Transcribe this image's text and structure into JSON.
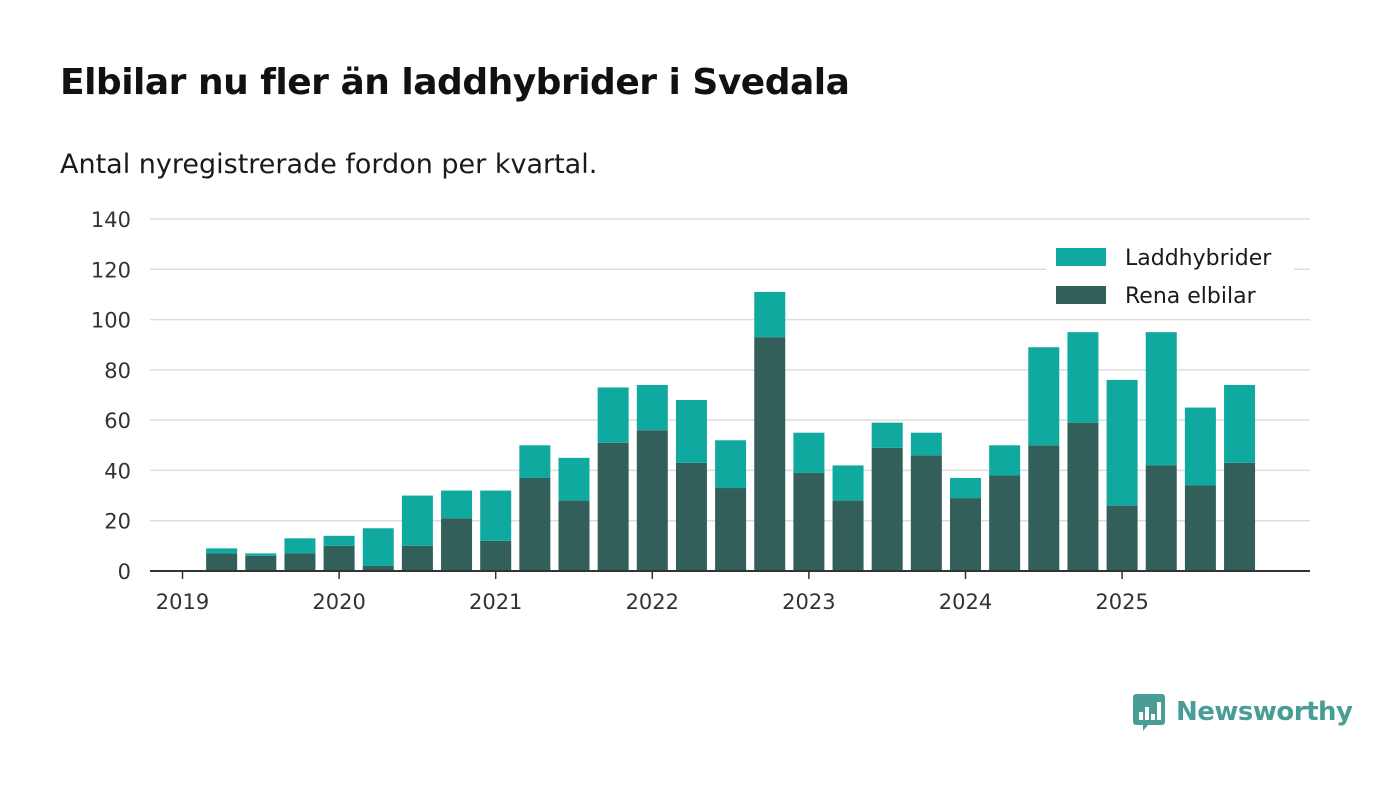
{
  "title": "Elbilar nu fler än laddhybrider i Svedala",
  "subtitle": "Antal nyregistrerade fordon per kvartal.",
  "brand": {
    "name": "Newsworthy"
  },
  "colors": {
    "rena_elbilar": "#335f5b",
    "laddhybrider": "#0fa9a0",
    "gridline": "#dddddd",
    "axis": "#333333",
    "brand": "#4a9d96"
  },
  "chart_data": {
    "type": "bar",
    "stacked": true,
    "title": "Elbilar nu fler än laddhybrider i Svedala",
    "subtitle": "Antal nyregistrerade fordon per kvartal.",
    "xlabel": "",
    "ylabel": "",
    "ylim": [
      0,
      140
    ],
    "yticks": [
      0,
      20,
      40,
      60,
      80,
      100,
      120,
      140
    ],
    "grid": true,
    "legend_position": "top-right",
    "year_labels": [
      "2019",
      "2020",
      "2021",
      "2022",
      "2023",
      "2024",
      "2025"
    ],
    "categories": [
      "2019 Q1",
      "2019 Q2",
      "2019 Q3",
      "2019 Q4",
      "2020 Q1",
      "2020 Q2",
      "2020 Q3",
      "2020 Q4",
      "2021 Q1",
      "2021 Q2",
      "2021 Q3",
      "2021 Q4",
      "2022 Q1",
      "2022 Q2",
      "2022 Q3",
      "2022 Q4",
      "2023 Q1",
      "2023 Q2",
      "2023 Q3",
      "2023 Q4",
      "2024 Q1",
      "2024 Q2",
      "2024 Q3",
      "2024 Q4",
      "2025 Q1",
      "2025 Q2",
      "2025 Q3",
      "2025 Q4"
    ],
    "series": [
      {
        "name": "Rena elbilar",
        "color": "#335f5b",
        "values": [
          0,
          7,
          6,
          7,
          10,
          2,
          10,
          21,
          12,
          37,
          28,
          51,
          56,
          43,
          33,
          93,
          39,
          28,
          49,
          46,
          29,
          38,
          50,
          59,
          26,
          42,
          34,
          43
        ]
      },
      {
        "name": "Laddhybrider",
        "color": "#0fa9a0",
        "values": [
          0,
          2,
          1,
          6,
          4,
          15,
          20,
          11,
          20,
          13,
          17,
          22,
          18,
          25,
          19,
          18,
          16,
          14,
          10,
          9,
          8,
          12,
          39,
          36,
          50,
          53,
          31,
          31
        ]
      }
    ],
    "legend": [
      "Laddhybrider",
      "Rena elbilar"
    ]
  }
}
